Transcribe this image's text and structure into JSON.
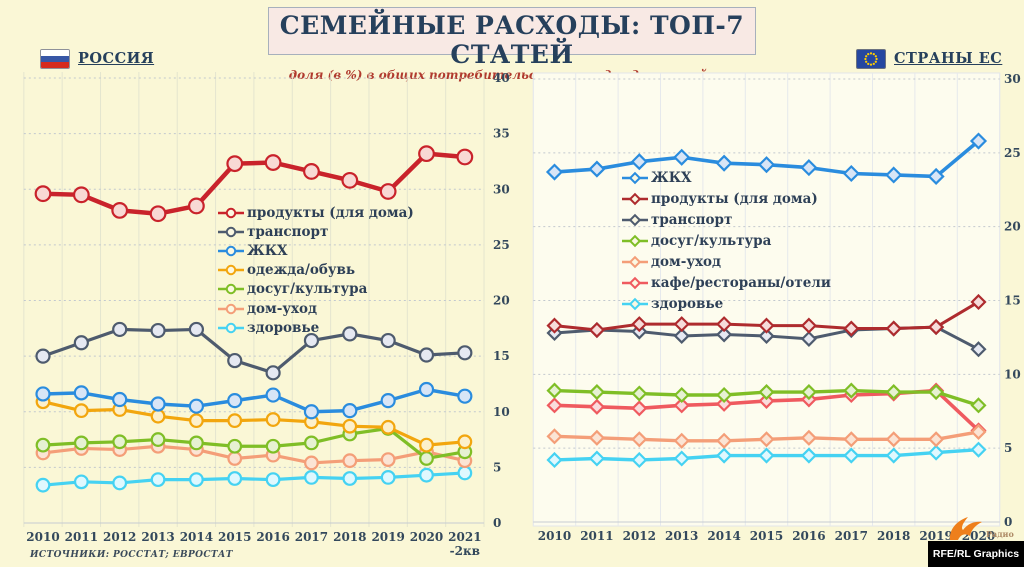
{
  "header": {
    "title": "СЕМЕЙНЫЕ РАСХОДЫ: ТОП-7 СТАТЕЙ",
    "subtitle": "доля (в %) в общих потребительских расходах домохозяйств"
  },
  "left_header": {
    "label": "РОССИЯ"
  },
  "right_header": {
    "label": "СТРАНЫ ЕС"
  },
  "footer": {
    "sources": "ИСТОЧНИКИ: РОССТАТ; ЕВРОСТАТ",
    "radio_label": "Радио",
    "credit": "RFE/RL Graphics"
  },
  "colors": {
    "page_bg": "#FAF7D6",
    "title_box_bg": "#F8E9E4",
    "title_text": "#26405C",
    "subtitle_text": "#B03A2E",
    "right_plot_bg": "#FDFCEE",
    "grid_dotted": "#C2C8CE",
    "grid_vertical_left": "#E4E5CF",
    "grid_vertical_right": "#E6E9EC",
    "tick_text": "#33485C"
  },
  "chart_data": [
    {
      "id": "russia",
      "type": "line",
      "title": "РОССИЯ",
      "marker": "circle",
      "x": [
        "2010",
        "2011",
        "2012",
        "2013",
        "2014",
        "2015",
        "2016",
        "2017",
        "2018",
        "2019",
        "2020",
        "2021"
      ],
      "x_last_note": "-2кв",
      "ylim": [
        0,
        40
      ],
      "ytick_step": 5,
      "grid": true,
      "legend_position": "center-left-overlay",
      "series": [
        {
          "name": "продукты (для дома)",
          "color": "#C9232B",
          "fill": "#F8D9D4",
          "lw": 4.5,
          "mr": 7.3,
          "values": [
            29.6,
            29.5,
            28.1,
            27.8,
            28.5,
            32.3,
            32.4,
            31.6,
            30.8,
            29.8,
            33.2,
            32.9
          ]
        },
        {
          "name": "транспорт",
          "color": "#4E5B6E",
          "fill": "#E6E9F2",
          "lw": 3.2,
          "mr": 6.5,
          "values": [
            15.0,
            16.2,
            17.4,
            17.3,
            17.4,
            14.6,
            13.5,
            16.4,
            17.0,
            16.4,
            15.1,
            15.3
          ]
        },
        {
          "name": "ЖКХ",
          "color": "#2A8CDE",
          "fill": "#D8E5F6",
          "lw": 3.5,
          "mr": 6.5,
          "values": [
            11.6,
            11.7,
            11.1,
            10.7,
            10.5,
            11.0,
            11.5,
            10.0,
            10.1,
            11.0,
            12.0,
            11.4
          ]
        },
        {
          "name": "одежда/обувь",
          "color": "#F2A60E",
          "fill": "#FCF0CB",
          "lw": 3.2,
          "mr": 6.3,
          "values": [
            10.9,
            10.1,
            10.2,
            9.6,
            9.2,
            9.2,
            9.3,
            9.1,
            8.7,
            8.6,
            7.0,
            7.3
          ]
        },
        {
          "name": "досуг/культура",
          "color": "#7FBE26",
          "fill": "#E6F1D2",
          "lw": 3.2,
          "mr": 6.3,
          "values": [
            7.0,
            7.2,
            7.3,
            7.5,
            7.2,
            6.9,
            6.9,
            7.2,
            8.0,
            8.5,
            5.8,
            6.4
          ]
        },
        {
          "name": "дом-уход",
          "color": "#F49E78",
          "fill": "#FBE4D4",
          "lw": 3.2,
          "mr": 6.3,
          "values": [
            6.3,
            6.7,
            6.6,
            6.9,
            6.6,
            5.8,
            6.1,
            5.4,
            5.6,
            5.7,
            6.4,
            5.6
          ]
        },
        {
          "name": "здоровье",
          "color": "#45D2F2",
          "fill": "#DFF8FE",
          "lw": 3.2,
          "mr": 6.3,
          "values": [
            3.4,
            3.7,
            3.6,
            3.9,
            3.9,
            4.0,
            3.9,
            4.1,
            4.0,
            4.1,
            4.3,
            4.5
          ]
        }
      ]
    },
    {
      "id": "eu",
      "type": "line",
      "title": "СТРАНЫ ЕС",
      "marker": "diamond",
      "x": [
        "2010",
        "2011",
        "2012",
        "2013",
        "2014",
        "2015",
        "2016",
        "2017",
        "2018",
        "2019",
        "2020"
      ],
      "ylim": [
        0,
        30
      ],
      "ytick_step": 5,
      "grid": true,
      "legend_position": "center-left-overlay",
      "series": [
        {
          "name": "ЖКХ",
          "color": "#2A8CDE",
          "fill": "#D8E5F6",
          "lw": 3.6,
          "mr": 7,
          "values": [
            23.7,
            23.9,
            24.4,
            24.7,
            24.3,
            24.2,
            24.0,
            23.6,
            23.5,
            23.4,
            25.8
          ]
        },
        {
          "name": "продукты (для дома)",
          "color": "#AE2B2E",
          "fill": "#F6DCDA",
          "lw": 3,
          "mr": 6.5,
          "values": [
            13.3,
            13.0,
            13.4,
            13.4,
            13.4,
            13.3,
            13.3,
            13.1,
            13.1,
            13.2,
            14.9
          ]
        },
        {
          "name": "транспорт",
          "color": "#4E5B6E",
          "fill": "#E6E9F2",
          "lw": 3,
          "mr": 6.5,
          "values": [
            12.8,
            13.0,
            12.9,
            12.6,
            12.7,
            12.6,
            12.4,
            13.0,
            13.1,
            13.2,
            11.7
          ]
        },
        {
          "name": "досуг/культура",
          "color": "#7FBE26",
          "fill": "#E6F1D2",
          "lw": 3.4,
          "mr": 6.5,
          "values": [
            8.9,
            8.8,
            8.7,
            8.6,
            8.6,
            8.8,
            8.8,
            8.9,
            8.8,
            8.8,
            7.9
          ]
        },
        {
          "name": "дом-уход",
          "color": "#F49E78",
          "fill": "#FBE4D4",
          "lw": 3.4,
          "mr": 6.5,
          "values": [
            5.8,
            5.7,
            5.6,
            5.5,
            5.5,
            5.6,
            5.7,
            5.6,
            5.6,
            5.6,
            6.1
          ]
        },
        {
          "name": "кафе/рестораны/отели",
          "color": "#EF5A5F",
          "fill": "#FADCDC",
          "lw": 3.6,
          "mr": 6.5,
          "values": [
            7.9,
            7.8,
            7.7,
            7.9,
            8.0,
            8.2,
            8.3,
            8.6,
            8.7,
            8.9,
            6.2
          ]
        },
        {
          "name": "здоровье",
          "color": "#45D2F2",
          "fill": "#DFF8FE",
          "lw": 3.4,
          "mr": 6.5,
          "values": [
            4.2,
            4.3,
            4.2,
            4.3,
            4.5,
            4.5,
            4.5,
            4.5,
            4.5,
            4.7,
            4.9
          ]
        }
      ]
    }
  ]
}
